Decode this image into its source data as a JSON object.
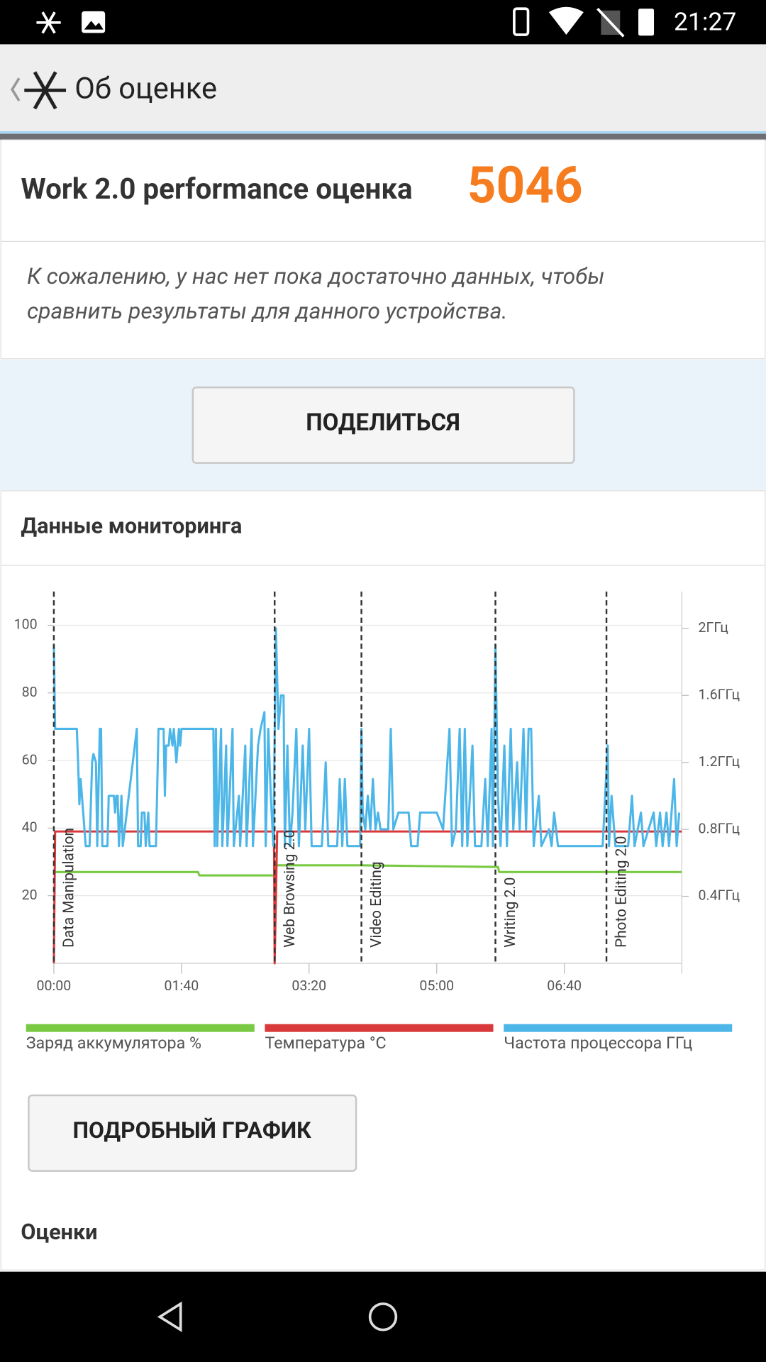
{
  "status_bar": {
    "time": "21:27"
  },
  "header": {
    "title": "Об оценке"
  },
  "score": {
    "label": "Work 2.0 performance оценка",
    "value": 5046
  },
  "message": [
    "К сожалению, у нас нет пока достаточно данных, чтобы",
    "сравнить результаты для данного устройства."
  ],
  "share_button": "ПОДЕЛИТЬСЯ",
  "section_title": "Данные мониторинга",
  "chart_data": {
    "type": "line",
    "xlim": [
      0,
      492
    ],
    "xticks": [
      {
        "value": 0,
        "label": "00:00"
      },
      {
        "value": 100,
        "label": "01:40"
      },
      {
        "value": 200,
        "label": "03:20"
      },
      {
        "value": 300,
        "label": "05:00"
      },
      {
        "value": 400,
        "label": "06:40"
      }
    ],
    "ylim": [
      0,
      110
    ],
    "yticks": [
      20,
      40,
      60,
      80,
      100
    ],
    "y2lim": [
      0,
      2.22
    ],
    "y2ticks": [
      {
        "value": 0.4,
        "label": "0.4ГГц"
      },
      {
        "value": 0.8,
        "label": "0.8ГГц"
      },
      {
        "value": 1.2,
        "label": "1.2ГГц"
      },
      {
        "value": 1.6,
        "label": "1.6ГГц"
      },
      {
        "value": 2,
        "label": "2ГГц"
      }
    ],
    "grid": true,
    "markers": [
      {
        "label": "Data Manipulation",
        "x": 0
      },
      {
        "label": "Web Browsing 2.0",
        "x": 173
      },
      {
        "label": "Video Editing",
        "x": 241
      },
      {
        "label": "Writing 2.0",
        "x": 346
      },
      {
        "label": "Photo Editing 2.0",
        "x": 433
      }
    ],
    "series": [
      {
        "name": "Заряд аккумулятора %",
        "color": "#7ac943",
        "x": [
          0,
          113,
          114,
          173,
          174,
          240,
          348,
          349,
          492
        ],
        "values": [
          27,
          27,
          26,
          26,
          29,
          29,
          28.5,
          27,
          27
        ]
      },
      {
        "name": "Температура °C",
        "color": "#d9393a",
        "x": [
          0,
          1,
          172.5,
          173,
          175,
          492
        ],
        "values": [
          0,
          39,
          39,
          0,
          39,
          39
        ]
      },
      {
        "name": "Частота процессора ГГц",
        "color": "#4db6e8",
        "axis": "y2",
        "x": [
          0,
          1,
          10,
          18,
          19,
          20,
          21,
          23,
          25,
          28,
          30,
          31,
          33,
          34,
          36,
          37,
          38,
          42,
          43,
          47,
          48,
          49,
          50,
          51,
          53,
          54,
          65,
          66,
          68,
          69,
          71,
          72,
          74,
          75,
          77,
          80,
          82,
          86,
          87,
          88,
          90,
          91,
          93,
          94,
          96,
          98,
          99,
          100,
          125,
          126,
          127,
          128,
          131,
          132,
          135,
          136,
          140,
          141,
          145,
          146,
          150,
          151,
          155,
          156,
          160,
          162,
          165,
          166,
          168,
          170,
          172,
          174,
          176,
          178,
          180,
          181,
          183,
          185,
          187,
          190,
          192,
          195,
          197,
          200,
          202,
          210,
          213,
          215,
          222,
          224,
          226,
          228,
          230,
          240,
          241,
          242,
          244,
          246,
          248,
          250,
          252,
          254,
          256,
          262,
          264,
          266,
          270,
          278,
          280,
          285,
          287,
          300,
          305,
          310,
          312,
          315,
          318,
          320,
          322,
          324,
          328,
          330,
          335,
          338,
          340,
          343,
          344,
          346,
          348,
          350,
          353,
          355,
          358,
          360,
          363,
          365,
          368,
          370,
          372,
          374,
          376,
          380,
          382,
          388,
          390,
          392,
          395,
          430,
          434,
          435,
          437,
          440,
          450,
          453,
          455,
          460,
          462,
          470,
          472,
          475,
          477,
          480,
          482,
          486,
          488,
          490
        ],
        "values": [
          1.9,
          1.4,
          1.4,
          1.4,
          1.2,
          0.95,
          1.1,
          0.9,
          0.7,
          0.7,
          1.2,
          1.25,
          1.2,
          0.7,
          1.4,
          1.4,
          0.7,
          0.7,
          1.0,
          1.0,
          0.9,
          1.0,
          1.0,
          0.7,
          1.0,
          0.7,
          1.4,
          0.7,
          0.7,
          0.9,
          0.9,
          0.7,
          0.9,
          0.7,
          0.7,
          0.7,
          1.4,
          1.4,
          1.0,
          1.3,
          1.3,
          1.4,
          1.3,
          1.4,
          1.2,
          1.4,
          1.3,
          1.4,
          1.4,
          0.7,
          1.4,
          0.7,
          1.4,
          0.7,
          1.3,
          0.7,
          1.4,
          0.7,
          1.0,
          0.7,
          1.3,
          0.7,
          1.4,
          0.7,
          1.3,
          1.4,
          1.5,
          0.7,
          1.4,
          1.0,
          0.7,
          2.0,
          1.4,
          1.6,
          1.6,
          0.7,
          1.3,
          0.7,
          0.9,
          1.4,
          0.7,
          1.3,
          0.8,
          1.4,
          0.7,
          0.7,
          1.2,
          0.7,
          0.7,
          1.1,
          0.7,
          1.1,
          0.7,
          0.7,
          1.4,
          0.9,
          0.8,
          1.0,
          0.8,
          1.1,
          0.8,
          0.9,
          0.8,
          0.8,
          1.4,
          0.8,
          0.9,
          0.9,
          0.7,
          0.7,
          0.9,
          0.9,
          0.8,
          1.4,
          0.7,
          0.8,
          1.4,
          0.7,
          1.4,
          0.7,
          1.3,
          0.7,
          0.7,
          1.1,
          0.7,
          1.4,
          0.7,
          1.9,
          1.0,
          0.7,
          1.3,
          0.7,
          1.4,
          0.8,
          1.2,
          0.8,
          1.4,
          0.8,
          1.4,
          1.4,
          0.7,
          1.0,
          0.7,
          0.8,
          0.7,
          0.9,
          0.7,
          0.7,
          1.3,
          0.7,
          1.0,
          0.7,
          0.7,
          1.0,
          0.7,
          0.9,
          0.7,
          0.9,
          0.7,
          0.9,
          0.7,
          0.9,
          0.7,
          1.1,
          0.7,
          0.9
        ]
      }
    ]
  },
  "detail_button": "ПОДРОБНЫЙ ГРАФИК",
  "ratings_title": "Оценки"
}
